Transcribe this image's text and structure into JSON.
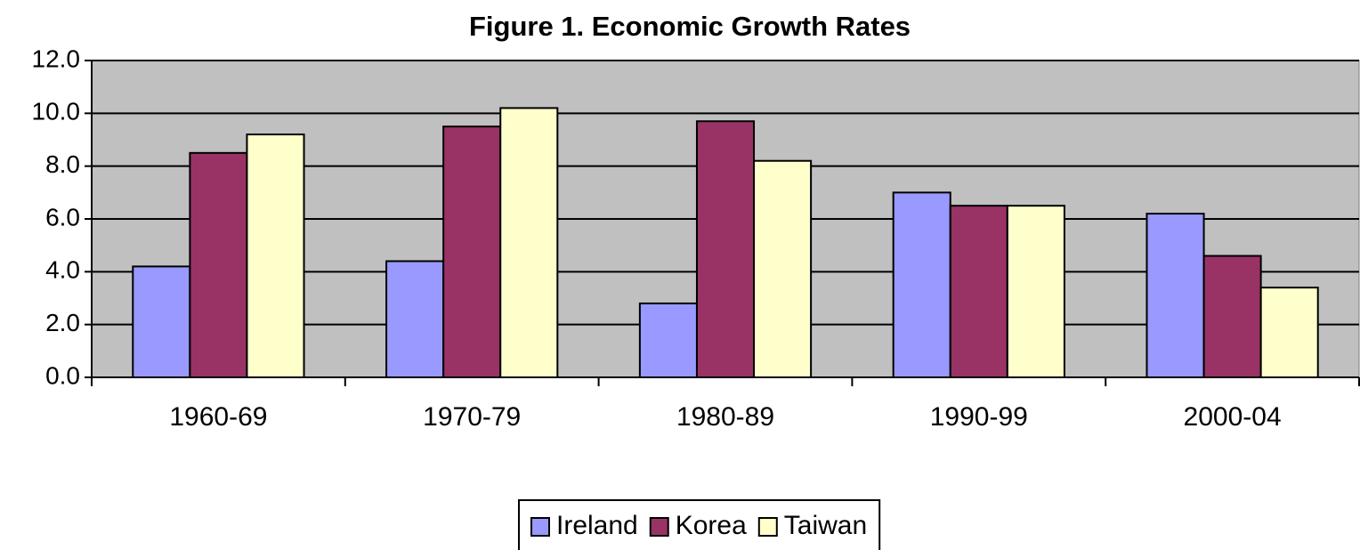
{
  "chart_data": {
    "type": "bar",
    "title": "Figure 1.  Economic Growth Rates",
    "categories": [
      "1960-69",
      "1970-79",
      "1980-89",
      "1990-99",
      "2000-04"
    ],
    "series": [
      {
        "name": "Ireland",
        "color": "#9999ff",
        "values": [
          4.2,
          4.4,
          2.8,
          7.0,
          6.2
        ]
      },
      {
        "name": "Korea",
        "color": "#993366",
        "values": [
          8.5,
          9.5,
          9.7,
          6.5,
          4.6
        ]
      },
      {
        "name": "Taiwan",
        "color": "#ffffcc",
        "values": [
          9.2,
          10.2,
          8.2,
          6.5,
          3.4
        ]
      }
    ],
    "ylim": [
      0,
      12
    ],
    "yticks": [
      {
        "value": 0,
        "label": "0.0"
      },
      {
        "value": 2,
        "label": "2.0"
      },
      {
        "value": 4,
        "label": "4.0"
      },
      {
        "value": 6,
        "label": "6.0"
      },
      {
        "value": 8,
        "label": "8.0"
      },
      {
        "value": 10,
        "label": "10.0"
      },
      {
        "value": 12,
        "label": "12.0"
      }
    ],
    "grid": true,
    "legend": "bottom"
  }
}
